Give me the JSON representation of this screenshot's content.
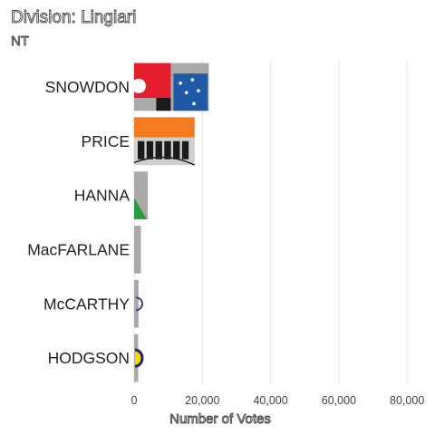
{
  "chart_data": {
    "type": "bar",
    "orientation": "horizontal",
    "title": "Division: Lingiari",
    "subtitle": "NT",
    "xlabel": "Number of Votes",
    "ylabel": "",
    "xlim": [
      0,
      85000
    ],
    "xticks": [
      0,
      20000,
      40000,
      60000,
      80000
    ],
    "xtick_labels": [
      "0",
      "20,000",
      "40,000",
      "60,000",
      "80,000"
    ],
    "grid": "vertical",
    "legend": "none",
    "categories": [
      "SNOWDON",
      "PRICE",
      "HANNA",
      "MacFARLANE",
      "McCARTHY",
      "HODGSON"
    ],
    "values": [
      21900,
      17700,
      4000,
      2000,
      1300,
      1200
    ],
    "bar_color": "#aaaaaa",
    "party_logos": [
      "labor-logo",
      "country-liberals-logo",
      "greens-logo",
      "",
      "party-logo-blue",
      "party-logo-yellow"
    ]
  },
  "colors": {
    "grid": "#e3e3e3",
    "axis_text": "#444444",
    "category_text": "#222222",
    "labor_red": "#e41d2d",
    "liberal_blue": "#1f5aa6",
    "country_orange": "#f47b20",
    "greens_green": "#2a9d3a"
  }
}
